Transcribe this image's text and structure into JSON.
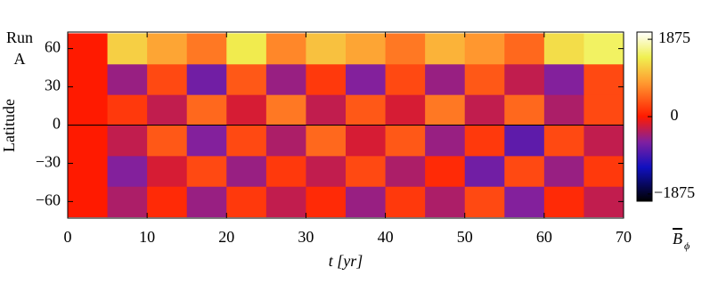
{
  "chart_data": {
    "type": "heatmap",
    "annotation": [
      "Run",
      "A"
    ],
    "x_label": "t [yr]",
    "y_label": "Latitude",
    "xlim": [
      0,
      70
    ],
    "xticks": [
      0,
      10,
      20,
      30,
      40,
      50,
      60,
      70
    ],
    "ylim": [
      -73,
      73
    ],
    "yticks": [
      -60,
      -30,
      0,
      30,
      60
    ],
    "x_edges": [
      0,
      5,
      10,
      15,
      20,
      25,
      30,
      35,
      40,
      45,
      50,
      55,
      60,
      65,
      70
    ],
    "y_edges": [
      -72,
      -48,
      -24,
      0,
      24,
      48,
      72
    ],
    "z": [
      [
        0,
        -400,
        100,
        -500,
        200,
        -300,
        100,
        -500,
        200,
        -400,
        300,
        -600,
        100,
        -300
      ],
      [
        0,
        -600,
        -200,
        300,
        -500,
        200,
        -300,
        300,
        -400,
        100,
        -700,
        300,
        -500,
        200
      ],
      [
        0,
        -300,
        400,
        -600,
        300,
        -400,
        500,
        -200,
        400,
        -500,
        200,
        -800,
        300,
        -300
      ],
      [
        0,
        200,
        -300,
        500,
        -200,
        600,
        -300,
        400,
        -200,
        600,
        -300,
        500,
        -400,
        300
      ],
      [
        0,
        -500,
        300,
        -700,
        400,
        -500,
        200,
        -600,
        300,
        -500,
        400,
        -300,
        -600,
        300
      ],
      [
        0,
        1200,
        900,
        600,
        1400,
        700,
        1100,
        900,
        600,
        1000,
        800,
        500,
        1300,
        1500
      ]
    ],
    "hline": 0,
    "zlim": [
      -2050,
      2050
    ],
    "zticks": [
      -1875,
      0,
      1875
    ],
    "colorbar_label": "B",
    "colorbar_label_sub": "ϕ"
  }
}
